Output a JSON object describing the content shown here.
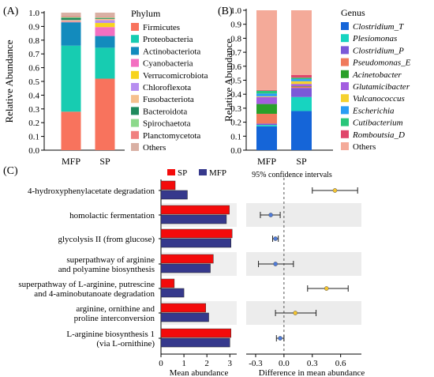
{
  "panel_labels": {
    "a": "(A)",
    "b": "(B)",
    "c": "(C)"
  },
  "chart_data": [
    {
      "type": "bar",
      "stacked": true,
      "panel": "(A)",
      "categories": [
        "MFP",
        "SP"
      ],
      "ylabel": "Relative Abundance",
      "ylim": [
        0,
        1.0
      ],
      "yticks": [
        "0.0",
        "0.1",
        "0.2",
        "0.3",
        "0.4",
        "0.5",
        "0.6",
        "0.7",
        "0.8",
        "0.9",
        "1.0"
      ],
      "legend_title": "Phylum",
      "legend_placement": "right",
      "series": [
        {
          "name": "Firmicutes",
          "color": "#f8735d",
          "values": [
            0.28,
            0.52
          ]
        },
        {
          "name": "Proteobacteria",
          "color": "#17ccb1",
          "values": [
            0.48,
            0.225
          ]
        },
        {
          "name": "Actinobacteriota",
          "color": "#138bbd",
          "values": [
            0.17,
            0.085
          ]
        },
        {
          "name": "Cyanobacteria",
          "color": "#f36fc1",
          "values": [
            0.005,
            0.065
          ]
        },
        {
          "name": "Verrucomicrobiota",
          "color": "#f7d41e",
          "values": [
            0.004,
            0.03
          ]
        },
        {
          "name": "Chloroflexota",
          "color": "#b78ef0",
          "values": [
            0.004,
            0.02
          ]
        },
        {
          "name": "Fusobacteriota",
          "color": "#f6c08e",
          "values": [
            0.004,
            0.01
          ]
        },
        {
          "name": "Bacteroidota",
          "color": "#1f8a5c",
          "values": [
            0.015,
            0.005
          ]
        },
        {
          "name": "Spirochaetota",
          "color": "#8dd98c",
          "values": [
            0.006,
            0.005
          ]
        },
        {
          "name": "Planctomycetota",
          "color": "#f08080",
          "values": [
            0.006,
            0.005
          ]
        },
        {
          "name": "Others",
          "color": "#d9b0a4",
          "values": [
            0.026,
            0.03
          ]
        }
      ]
    },
    {
      "type": "bar",
      "stacked": true,
      "panel": "(B)",
      "categories": [
        "MFP",
        "SP"
      ],
      "ylabel": "Relative Abundance",
      "ylim": [
        0,
        1.0
      ],
      "yticks": [
        "0.0",
        "0.1",
        "0.2",
        "0.3",
        "0.4",
        "0.5",
        "0.6",
        "0.7",
        "0.8",
        "0.9",
        "1.0"
      ],
      "legend_title": "Genus",
      "legend_placement": "right",
      "series": [
        {
          "name": "Clostridium_T",
          "color": "#1565d8",
          "values": [
            0.17,
            0.28
          ]
        },
        {
          "name": "Plesiomonas",
          "color": "#17d4c0",
          "values": [
            0.01,
            0.1
          ]
        },
        {
          "name": "Clostridium_P",
          "color": "#7b59d8",
          "values": [
            0.01,
            0.065
          ]
        },
        {
          "name": "Pseudomonas_E",
          "color": "#f07a5c",
          "values": [
            0.07,
            0.01
          ]
        },
        {
          "name": "Acinetobacter",
          "color": "#2aa02a",
          "values": [
            0.07,
            0.003
          ]
        },
        {
          "name": "Glutamicibacter",
          "color": "#a35de0",
          "values": [
            0.05,
            0.015
          ]
        },
        {
          "name": "Vulcanococcus",
          "color": "#f5d130",
          "values": [
            0.005,
            0.02
          ]
        },
        {
          "name": "Escherichia",
          "color": "#2a9df4",
          "values": [
            0.02,
            0.015
          ]
        },
        {
          "name": "Cutibacterium",
          "color": "#2ac67a",
          "values": [
            0.02,
            0.01
          ]
        },
        {
          "name": "Romboutsia_D",
          "color": "#e0466b",
          "values": [
            0.005,
            0.02
          ]
        },
        {
          "name": "Others",
          "color": "#f4aa99",
          "values": [
            0.57,
            0.462
          ]
        }
      ]
    },
    {
      "type": "bar",
      "orientation": "horizontal",
      "panel": "(C)",
      "categories": [
        "4-hydroxyphenylacetate degradation",
        "homolactic fermentation",
        "glycolysis II (from glucose)",
        "superpathway of arginine and polyamine biosynthesis",
        "superpathway of L-arginine, putrescine and 4-aminobutanoate degradation",
        "arginine, ornithine and proline interconversion",
        "L-arginine biosynthesis 1 (via L-ornithine)"
      ],
      "category_lines": [
        [
          "4-hydroxyphenylacetate degradation"
        ],
        [
          "homolactic fermentation"
        ],
        [
          "glycolysis II (from glucose)"
        ],
        [
          "superpathway of arginine",
          "and polyamine biosynthesis"
        ],
        [
          "superpathway of L-arginine, putrescine",
          "and 4-aminobutanoate degradation"
        ],
        [
          "arginine, ornithine and",
          "proline interconversion"
        ],
        [
          "L-arginine biosynthesis 1",
          "(via L-ornithine)"
        ]
      ],
      "xlabel": "Mean abundance",
      "xlim": [
        0,
        3.3
      ],
      "xticks": [
        "0",
        "1",
        "2",
        "3"
      ],
      "legend_placement": "top",
      "series": [
        {
          "name": "SP",
          "color": "#f40b0b",
          "values": [
            0.62,
            2.98,
            3.1,
            2.28,
            0.58,
            1.95,
            3.05
          ]
        },
        {
          "name": "MFP",
          "color": "#36398c",
          "values": [
            1.15,
            2.85,
            3.05,
            2.15,
            1.0,
            2.08,
            3.0
          ]
        }
      ]
    },
    {
      "type": "scatter",
      "subtype": "confidence_interval",
      "panel": "(C)",
      "title": "95% confidence intervals",
      "xlabel": "Difference in mean abundance",
      "xlim": [
        -0.4,
        0.82
      ],
      "xticks": [
        "-0.3",
        "0.0",
        "0.3",
        "0.6"
      ],
      "categories": [
        "4-hydroxyphenylacetate degradation",
        "homolactic fermentation",
        "glycolysis II (from glucose)",
        "superpathway of arginine and polyamine biosynthesis",
        "superpathway of L-arginine, putrescine and 4-aminobutanoate degradation",
        "arginine, ornithine and proline interconversion",
        "L-arginine biosynthesis 1 (via L-ornithine)"
      ],
      "estimate": [
        0.54,
        -0.14,
        -0.09,
        -0.09,
        0.45,
        0.12,
        -0.04
      ],
      "ci_low": [
        0.3,
        -0.25,
        -0.12,
        -0.27,
        0.25,
        -0.09,
        -0.08
      ],
      "ci_high": [
        0.78,
        -0.04,
        -0.06,
        0.1,
        0.68,
        0.34,
        0.0
      ],
      "point_colors": [
        "#f4c430",
        "#4f7bd8",
        "#4f7bd8",
        "#4f7bd8",
        "#f4c430",
        "#f4c430",
        "#4f7bd8"
      ]
    }
  ]
}
